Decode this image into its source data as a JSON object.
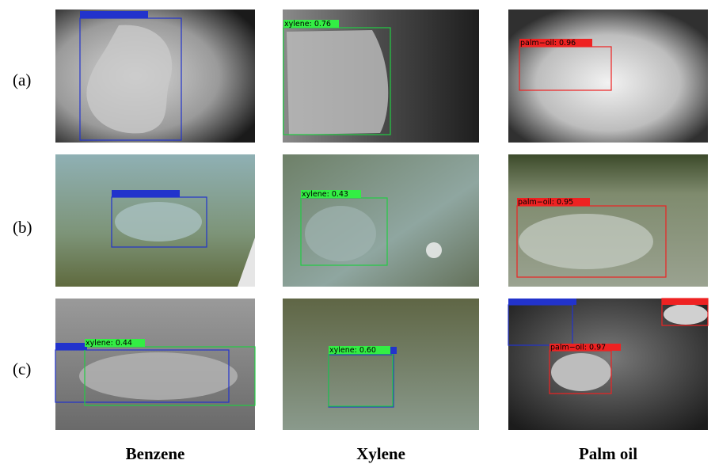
{
  "row_labels": [
    "(a)",
    "(b)",
    "(c)"
  ],
  "column_labels": [
    "Benzene",
    "Xylene",
    "Palm oil"
  ],
  "detections": [
    "xylene: 0.76",
    "palm−oil: 0.96",
    "xylene: 0.43",
    "palm−oil: 0.95",
    "xylene: 0.44",
    "xylene: 0.60",
    "palm−oil: 0.97"
  ]
}
